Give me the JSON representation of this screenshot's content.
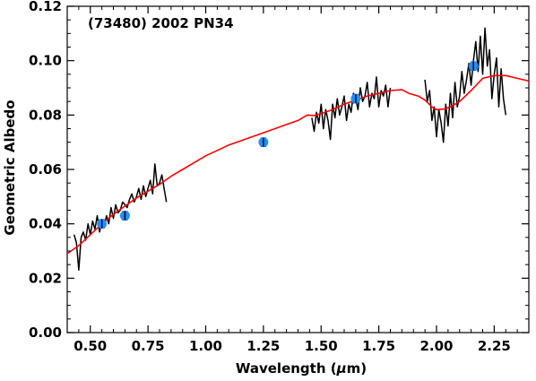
{
  "chart_data": {
    "type": "line",
    "title": "",
    "annotation": "(73480) 2002 PN34",
    "xlabel": "Wavelength (μm)",
    "ylabel": "Geometric Albedo",
    "xlim": [
      0.4,
      2.4
    ],
    "ylim": [
      0.0,
      0.12
    ],
    "xticks": [
      0.5,
      0.75,
      1.0,
      1.25,
      1.5,
      1.75,
      2.0,
      2.25
    ],
    "xtick_labels": [
      "0.50",
      "0.75",
      "1.00",
      "1.25",
      "1.50",
      "1.75",
      "2.00",
      "2.25"
    ],
    "yticks": [
      0.0,
      0.02,
      0.04,
      0.06,
      0.08,
      0.1,
      0.12
    ],
    "ytick_labels": [
      "0.00",
      "0.02",
      "0.04",
      "0.06",
      "0.08",
      "0.10",
      "0.12"
    ],
    "grid": false,
    "colors": {
      "model": "#ff0000",
      "spectrum": "#000000",
      "photometry": "#1e90ff"
    },
    "series": [
      {
        "role": "model",
        "x": [
          0.4,
          0.45,
          0.5,
          0.55,
          0.6,
          0.65,
          0.7,
          0.75,
          0.8,
          0.85,
          0.9,
          0.95,
          1.0,
          1.05,
          1.1,
          1.15,
          1.2,
          1.25,
          1.3,
          1.35,
          1.4,
          1.44,
          1.47,
          1.5,
          1.55,
          1.6,
          1.65,
          1.7,
          1.75,
          1.8,
          1.85,
          1.88,
          1.92,
          1.95,
          1.98,
          2.0,
          2.03,
          2.06,
          2.1,
          2.15,
          2.2,
          2.25,
          2.3,
          2.35,
          2.4
        ],
        "y": [
          0.029,
          0.032,
          0.036,
          0.04,
          0.0435,
          0.0465,
          0.0495,
          0.052,
          0.0545,
          0.0575,
          0.06,
          0.0625,
          0.065,
          0.067,
          0.069,
          0.0705,
          0.072,
          0.0735,
          0.075,
          0.0765,
          0.078,
          0.08,
          0.0798,
          0.0805,
          0.082,
          0.084,
          0.0855,
          0.087,
          0.088,
          0.089,
          0.0893,
          0.088,
          0.087,
          0.0855,
          0.083,
          0.082,
          0.0822,
          0.083,
          0.085,
          0.089,
          0.0935,
          0.0945,
          0.0945,
          0.0935,
          0.0925
        ]
      },
      {
        "role": "spectrum",
        "x": [
          0.43,
          0.44,
          0.45,
          0.46,
          0.47,
          0.48,
          0.49,
          0.5,
          0.51,
          0.52,
          0.53,
          0.54,
          0.55,
          0.56,
          0.57,
          0.58,
          0.59,
          0.6,
          0.61,
          0.62,
          0.63,
          0.64,
          0.65,
          0.66,
          0.67,
          0.68,
          0.69,
          0.7,
          0.71,
          0.72,
          0.73,
          0.74,
          0.75,
          0.76,
          0.77,
          0.78,
          0.79,
          0.8,
          0.81,
          0.82,
          0.83
        ],
        "y": [
          0.036,
          0.033,
          0.023,
          0.035,
          0.037,
          0.034,
          0.04,
          0.036,
          0.041,
          0.038,
          0.043,
          0.037,
          0.041,
          0.039,
          0.043,
          0.04,
          0.046,
          0.042,
          0.047,
          0.044,
          0.045,
          0.048,
          0.047,
          0.046,
          0.049,
          0.051,
          0.048,
          0.05,
          0.053,
          0.049,
          0.054,
          0.05,
          0.053,
          0.056,
          0.051,
          0.062,
          0.054,
          0.055,
          0.058,
          0.053,
          0.048
        ]
      },
      {
        "role": "spectrum",
        "x": [
          1.46,
          1.47,
          1.48,
          1.49,
          1.5,
          1.51,
          1.52,
          1.53,
          1.54,
          1.55,
          1.56,
          1.57,
          1.58,
          1.59,
          1.6,
          1.61,
          1.62,
          1.63,
          1.64,
          1.65,
          1.66,
          1.67,
          1.68,
          1.69,
          1.7,
          1.71,
          1.72,
          1.73,
          1.74,
          1.75,
          1.76,
          1.77,
          1.78,
          1.79,
          1.8
        ],
        "y": [
          0.079,
          0.074,
          0.081,
          0.077,
          0.084,
          0.075,
          0.082,
          0.078,
          0.071,
          0.084,
          0.079,
          0.086,
          0.08,
          0.083,
          0.087,
          0.078,
          0.084,
          0.081,
          0.088,
          0.086,
          0.082,
          0.09,
          0.085,
          0.087,
          0.092,
          0.083,
          0.088,
          0.086,
          0.094,
          0.083,
          0.089,
          0.087,
          0.091,
          0.083,
          0.09
        ]
      },
      {
        "role": "spectrum",
        "x": [
          1.95,
          1.96,
          1.97,
          1.98,
          1.99,
          2.0,
          2.01,
          2.02,
          2.03,
          2.04,
          2.05,
          2.06,
          2.07,
          2.08,
          2.09,
          2.1,
          2.11,
          2.12,
          2.13,
          2.14,
          2.15,
          2.16,
          2.17,
          2.18,
          2.19,
          2.2,
          2.21,
          2.22,
          2.23,
          2.24,
          2.25,
          2.26,
          2.27,
          2.28,
          2.29,
          2.3
        ],
        "y": [
          0.093,
          0.085,
          0.089,
          0.078,
          0.083,
          0.072,
          0.082,
          0.077,
          0.07,
          0.084,
          0.076,
          0.088,
          0.079,
          0.092,
          0.083,
          0.087,
          0.096,
          0.088,
          0.093,
          0.099,
          0.091,
          0.1,
          0.107,
          0.096,
          0.109,
          0.095,
          0.112,
          0.098,
          0.104,
          0.086,
          0.095,
          0.101,
          0.083,
          0.097,
          0.086,
          0.08
        ]
      }
    ],
    "points": {
      "x": [
        0.55,
        0.65,
        1.25,
        1.65,
        2.16
      ],
      "y": [
        0.04,
        0.043,
        0.07,
        0.086,
        0.098
      ],
      "err": [
        0.0015,
        0.0015,
        0.0015,
        0.0015,
        0.0015
      ]
    }
  }
}
